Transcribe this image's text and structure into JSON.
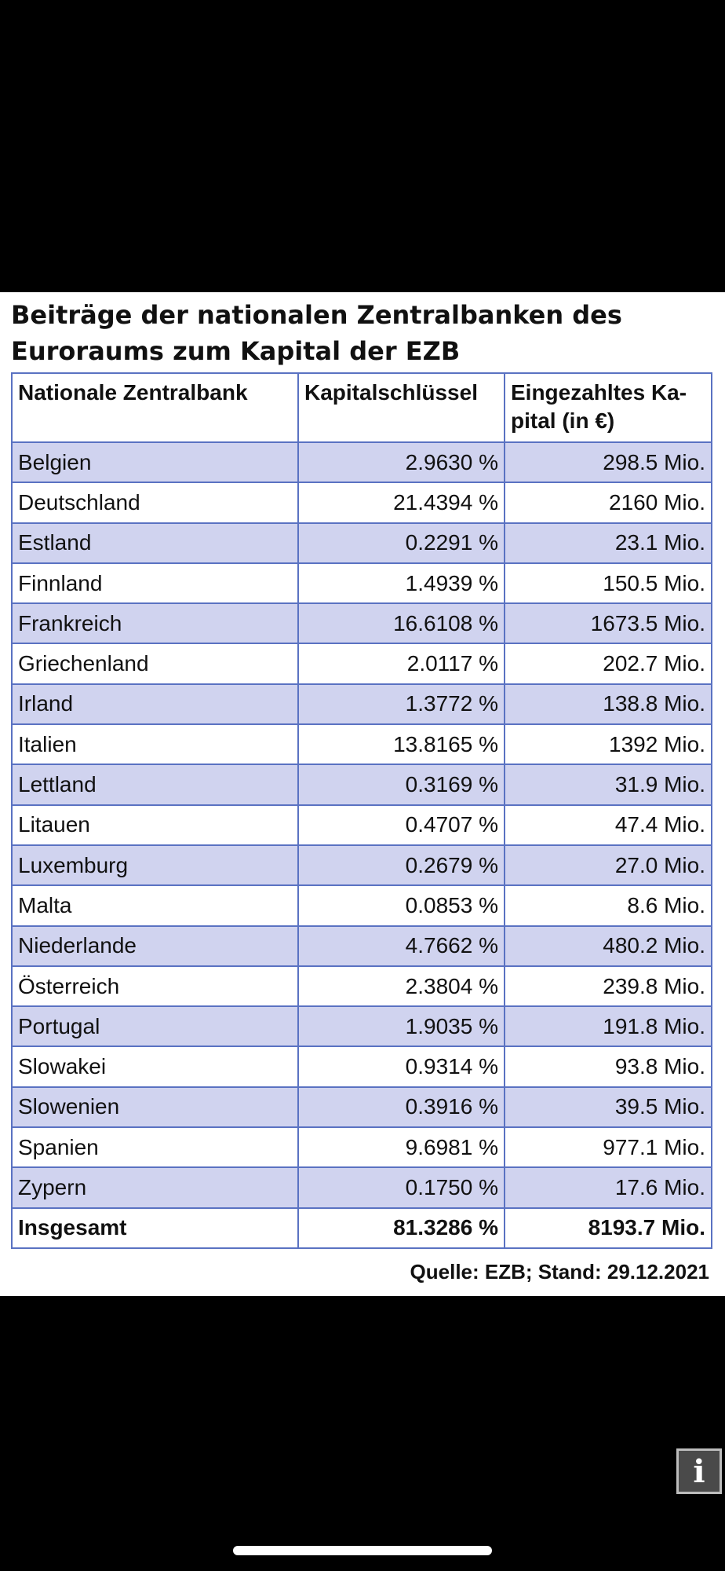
{
  "title": "Beiträge der nationalen Zentralbanken des Euroraums zum Kapital der EZB",
  "table": {
    "headers": [
      "Nationale Zentralbank",
      "Kapitalschlüssel",
      "Eingezahltes Ka-pital (in €)"
    ],
    "rows": [
      {
        "bank": "Belgien",
        "key": "2.9630 %",
        "capital": "298.5 Mio."
      },
      {
        "bank": "Deutschland",
        "key": "21.4394 %",
        "capital": "2160 Mio."
      },
      {
        "bank": "Estland",
        "key": "0.2291 %",
        "capital": "23.1 Mio."
      },
      {
        "bank": "Finnland",
        "key": "1.4939 %",
        "capital": "150.5 Mio."
      },
      {
        "bank": "Frankreich",
        "key": "16.6108 %",
        "capital": "1673.5 Mio."
      },
      {
        "bank": "Griechenland",
        "key": "2.0117 %",
        "capital": "202.7 Mio."
      },
      {
        "bank": "Irland",
        "key": "1.3772 %",
        "capital": "138.8 Mio."
      },
      {
        "bank": "Italien",
        "key": "13.8165 %",
        "capital": "1392 Mio."
      },
      {
        "bank": "Lettland",
        "key": "0.3169 %",
        "capital": "31.9 Mio."
      },
      {
        "bank": "Litauen",
        "key": "0.4707 %",
        "capital": "47.4 Mio."
      },
      {
        "bank": "Luxemburg",
        "key": "0.2679 %",
        "capital": "27.0 Mio."
      },
      {
        "bank": "Malta",
        "key": "0.0853 %",
        "capital": "8.6 Mio."
      },
      {
        "bank": "Niederlande",
        "key": "4.7662 %",
        "capital": "480.2 Mio."
      },
      {
        "bank": "Österreich",
        "key": "2.3804 %",
        "capital": "239.8 Mio."
      },
      {
        "bank": "Portugal",
        "key": "1.9035 %",
        "capital": "191.8 Mio."
      },
      {
        "bank": "Slowakei",
        "key": "0.9314 %",
        "capital": "93.8 Mio."
      },
      {
        "bank": "Slowenien",
        "key": "0.3916 %",
        "capital": "39.5 Mio."
      },
      {
        "bank": "Spanien",
        "key": "9.6981 %",
        "capital": "977.1 Mio."
      },
      {
        "bank": "Zypern",
        "key": "0.1750 %",
        "capital": "17.6 Mio."
      }
    ],
    "total": {
      "bank": "Insgesamt",
      "key": "81.3286 %",
      "capital": "8193.7 Mio."
    }
  },
  "source": "Quelle: EZB; Stand: 29.12.2021",
  "info_button": {
    "label": "i",
    "icon": "info-icon"
  },
  "colors": {
    "background": "#000000",
    "panel": "#ffffff",
    "row_stripe": "#d0d3ef",
    "border": "#5a72c2"
  }
}
